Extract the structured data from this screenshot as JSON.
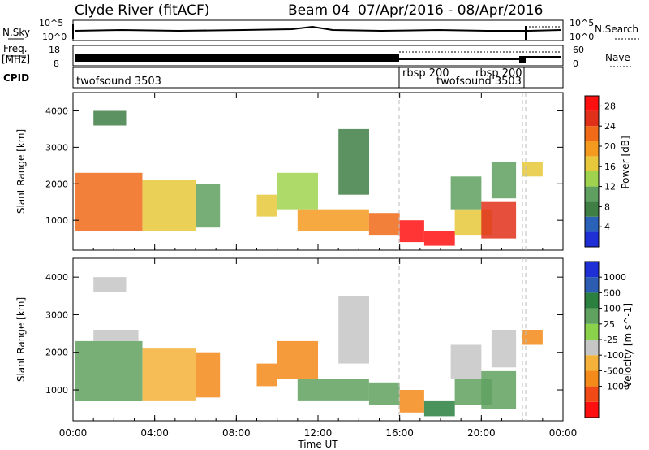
{
  "header": {
    "station": "Clyde River (fitACF)",
    "beam": "Beam 04",
    "dates": "07/Apr/2016 - 08/Apr/2016"
  },
  "strip_labels": {
    "nsky": "N.Sky",
    "nsearch": "N.Search",
    "freq_line1": "Freq.",
    "freq_line2": "[MHz]",
    "nave": "Nave",
    "cpid": "CPID"
  },
  "strip_ticks": {
    "sky_left_top": "10^5",
    "sky_left_bottom": "10^0",
    "sky_right_top": "10^5",
    "sky_right_bottom": "10^0",
    "freq_left_top": "18",
    "freq_left_bottom": "8",
    "nave_right_top": "60",
    "nave_right_bottom": "0"
  },
  "cpid_segments": [
    {
      "label": "twofsound 3503",
      "start_hour": 0,
      "end_hour": 16
    },
    {
      "label": "rbsp 200",
      "start_hour": 16,
      "end_hour": 20
    },
    {
      "label": "twofsound 3503",
      "start_hour": 17.5,
      "end_hour": 22
    },
    {
      "label": "rbsp 200",
      "start_hour": 19.8,
      "end_hour": 22
    }
  ],
  "colors": {
    "power": [
      "#1f2fd6",
      "#2a62b9",
      "#3f7f46",
      "#5f9f5f",
      "#9fd34f",
      "#e6c83a",
      "#f49a1f",
      "#f06a18",
      "#e0301a",
      "#ff1010"
    ],
    "velocity": [
      "#ff1010",
      "#f24a16",
      "#f48a1a",
      "#f4b23a",
      "#c6c6c6",
      "#8ad14c",
      "#5fa15f",
      "#2b8040",
      "#2c5db2",
      "#1f2fd6"
    ]
  },
  "chart_data": [
    {
      "type": "heatmap",
      "title": "",
      "xlabel": "Time UT",
      "ylabel": "Slant Range [km]",
      "xlim": [
        0,
        24
      ],
      "ylim": [
        180,
        4500
      ],
      "xticks": [
        "00:00",
        "04:00",
        "08:00",
        "12:00",
        "16:00",
        "20:00",
        "00:00"
      ],
      "yticks": [
        1000,
        2000,
        3000,
        4000
      ],
      "colorbar": {
        "label": "Power [dB]",
        "ticks": [
          4,
          8,
          12,
          16,
          20,
          24,
          28
        ],
        "range": [
          0,
          30
        ]
      },
      "regions": [
        {
          "t0": 0.1,
          "t1": 3.4,
          "r0": 700,
          "r1": 2300,
          "v": 21
        },
        {
          "t0": 3.4,
          "t1": 6.0,
          "r0": 700,
          "r1": 2100,
          "v": 15
        },
        {
          "t0": 6.0,
          "t1": 7.2,
          "r0": 800,
          "r1": 2000,
          "v": 9
        },
        {
          "t0": 1.0,
          "t1": 2.6,
          "r0": 3600,
          "r1": 4000,
          "v": 6
        },
        {
          "t0": 9.0,
          "t1": 10.0,
          "r0": 1100,
          "r1": 1700,
          "v": 16
        },
        {
          "t0": 10.0,
          "t1": 12.0,
          "r0": 1300,
          "r1": 2300,
          "v": 14
        },
        {
          "t0": 11.0,
          "t1": 14.5,
          "r0": 700,
          "r1": 1300,
          "v": 18
        },
        {
          "t0": 13.0,
          "t1": 14.5,
          "r0": 1700,
          "r1": 3500,
          "v": 7
        },
        {
          "t0": 14.5,
          "t1": 16.0,
          "r0": 600,
          "r1": 1200,
          "v": 22
        },
        {
          "t0": 16.0,
          "t1": 17.2,
          "r0": 400,
          "r1": 1000,
          "v": 28
        },
        {
          "t0": 17.2,
          "t1": 18.7,
          "r0": 300,
          "r1": 700,
          "v": 28
        },
        {
          "t0": 18.7,
          "t1": 20.5,
          "r0": 600,
          "r1": 1300,
          "v": 17
        },
        {
          "t0": 18.5,
          "t1": 20.0,
          "r0": 1300,
          "r1": 2200,
          "v": 11
        },
        {
          "t0": 20.0,
          "t1": 21.7,
          "r0": 500,
          "r1": 1500,
          "v": 24
        },
        {
          "t0": 20.5,
          "t1": 21.7,
          "r0": 1600,
          "r1": 2600,
          "v": 10
        },
        {
          "t0": 22.0,
          "t1": 23.0,
          "r0": 2200,
          "r1": 2600,
          "v": 17
        }
      ]
    },
    {
      "type": "heatmap",
      "title": "",
      "xlabel": "Time UT",
      "ylabel": "Slant Range [km]",
      "xlim": [
        0,
        24
      ],
      "ylim": [
        180,
        4500
      ],
      "xticks": [
        "00:00",
        "04:00",
        "08:00",
        "12:00",
        "16:00",
        "20:00",
        "00:00"
      ],
      "yticks": [
        1000,
        2000,
        3000,
        4000
      ],
      "colorbar": {
        "label": "Velocity [m s^-1]",
        "ticks": [
          1000,
          500,
          100,
          25,
          -25,
          -100,
          -500,
          -1000
        ],
        "levels": [
          -1500,
          -1000,
          -500,
          -100,
          -25,
          25,
          100,
          500,
          1000,
          1500
        ]
      },
      "regions": [
        {
          "t0": 0.1,
          "t1": 3.4,
          "r0": 700,
          "r1": 2300,
          "v": 150
        },
        {
          "t0": 3.4,
          "t1": 6.0,
          "r0": 700,
          "r1": 2100,
          "v": -60
        },
        {
          "t0": 6.0,
          "t1": 7.2,
          "r0": 800,
          "r1": 2000,
          "v": -300
        },
        {
          "t0": 1.0,
          "t1": 3.2,
          "r0": 2300,
          "r1": 2600,
          "v": 0
        },
        {
          "t0": 1.0,
          "t1": 2.6,
          "r0": 3600,
          "r1": 4000,
          "v": 0
        },
        {
          "t0": 9.0,
          "t1": 10.0,
          "r0": 1100,
          "r1": 1700,
          "v": -300
        },
        {
          "t0": 10.0,
          "t1": 12.0,
          "r0": 1300,
          "r1": 2300,
          "v": -150
        },
        {
          "t0": 11.0,
          "t1": 14.5,
          "r0": 700,
          "r1": 1300,
          "v": 200
        },
        {
          "t0": 13.0,
          "t1": 14.5,
          "r0": 1700,
          "r1": 3500,
          "v": 0
        },
        {
          "t0": 14.5,
          "t1": 16.0,
          "r0": 600,
          "r1": 1200,
          "v": 180
        },
        {
          "t0": 16.0,
          "t1": 17.2,
          "r0": 400,
          "r1": 1000,
          "v": -300
        },
        {
          "t0": 17.2,
          "t1": 18.7,
          "r0": 300,
          "r1": 700,
          "v": 600
        },
        {
          "t0": 18.7,
          "t1": 20.5,
          "r0": 600,
          "r1": 1300,
          "v": 300
        },
        {
          "t0": 18.5,
          "t1": 20.0,
          "r0": 1300,
          "r1": 2200,
          "v": 0
        },
        {
          "t0": 20.0,
          "t1": 21.7,
          "r0": 500,
          "r1": 1500,
          "v": 350
        },
        {
          "t0": 20.5,
          "t1": 21.7,
          "r0": 1600,
          "r1": 2600,
          "v": 0
        },
        {
          "t0": 22.0,
          "t1": 23.0,
          "r0": 2200,
          "r1": 2600,
          "v": -200
        }
      ]
    }
  ]
}
